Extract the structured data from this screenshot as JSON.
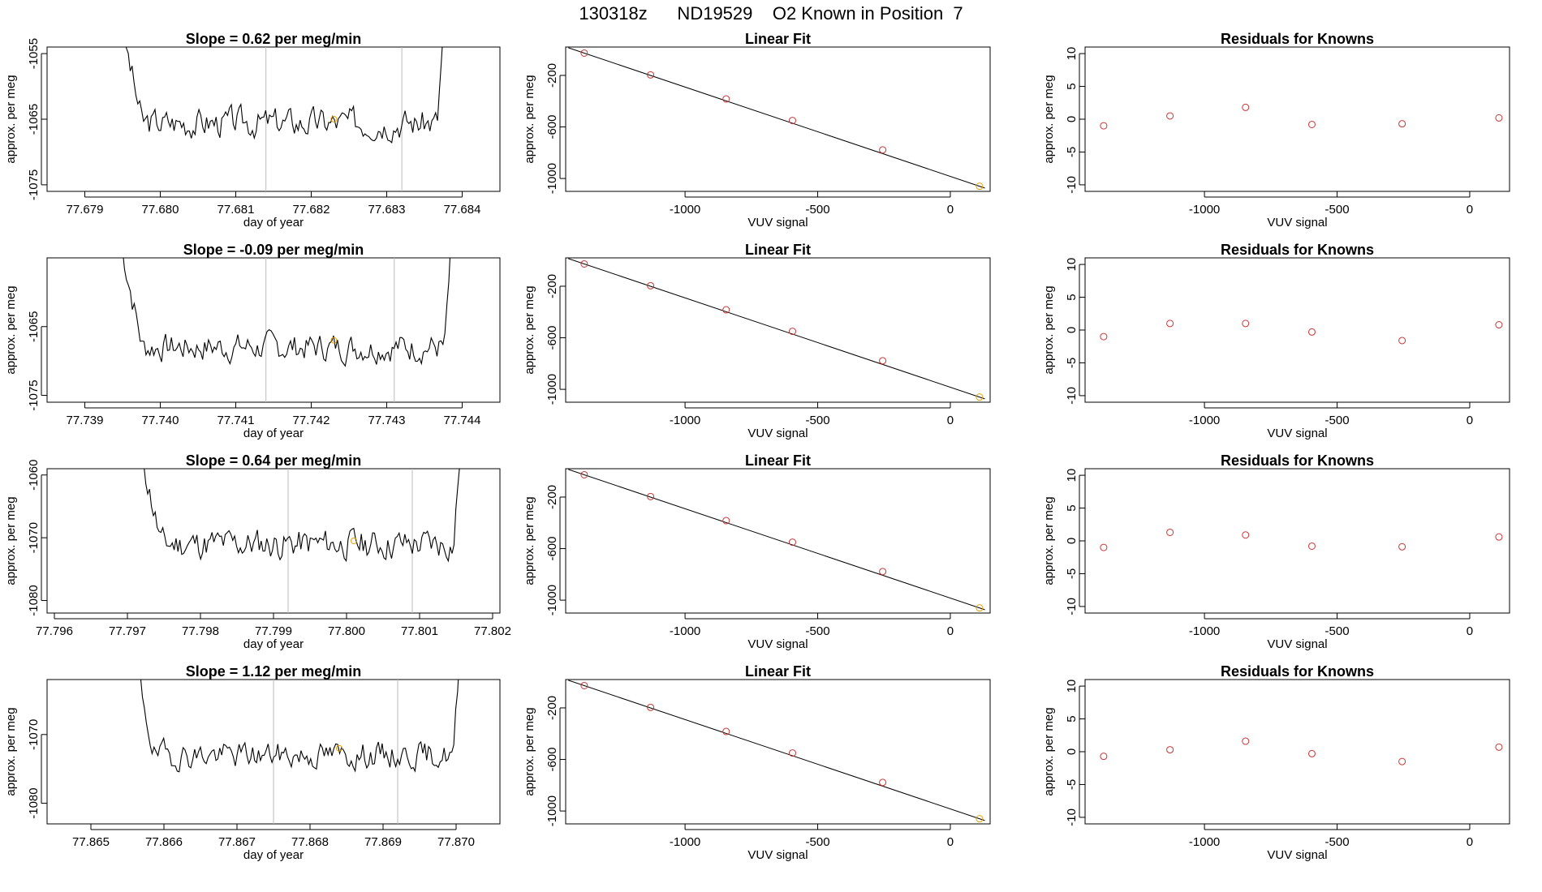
{
  "page_title": "130318z      ND19529    O2 Known in Position  7",
  "colors": {
    "trace": "#000000",
    "point": "#cc3333",
    "highlight": "#e69f00",
    "marker_line": "#bbbbbb",
    "frame": "#000000"
  },
  "chart_data": [
    {
      "type": "line",
      "title": "Slope =  0.62  per meg/min",
      "xlabel": "day of year",
      "ylabel": "approx. per meg",
      "xlim": [
        77.6785,
        77.6845
      ],
      "ylim": [
        -1076,
        -1054
      ],
      "xticks": [
        77.679,
        77.68,
        77.681,
        77.682,
        77.683,
        77.684
      ],
      "xtick_labels": [
        "77.679",
        "77.680",
        "77.681",
        "77.682",
        "77.683",
        "77.684"
      ],
      "yticks": [
        -1055,
        -1065,
        -1075
      ],
      "ytick_labels": [
        "-1055",
        "-1065",
        "-1075"
      ],
      "x_start": 77.6795,
      "x_end": 77.6838,
      "baseline": -1065.5,
      "amplitude": 3.5,
      "seed": 3,
      "vlines": [
        77.6814,
        77.6832
      ],
      "highlight_point": {
        "x": 77.6823,
        "y": -1065
      }
    },
    {
      "type": "scatter",
      "title": "Linear Fit",
      "xlabel": "VUV signal",
      "ylabel": "approx. per meg",
      "xlim": [
        -1450,
        150
      ],
      "ylim": [
        -1100,
        20
      ],
      "xticks": [
        -1000,
        -500,
        0
      ],
      "xtick_labels": [
        "-1000",
        "-500",
        "0"
      ],
      "yticks": [
        -200,
        -600,
        -1000
      ],
      "ytick_labels": [
        "-200",
        "-600",
        "-1000"
      ],
      "points": [
        {
          "x": -1380,
          "y": -27
        },
        {
          "x": -1130,
          "y": -196
        },
        {
          "x": -845,
          "y": -383
        },
        {
          "x": -595,
          "y": -550
        },
        {
          "x": -255,
          "y": -778
        },
        {
          "x": 110,
          "y": -1060
        }
      ],
      "fit_line": [
        {
          "x": -1380,
          "y": -27
        },
        {
          "x": 110,
          "y": -1060
        }
      ],
      "highlight_index": 5
    },
    {
      "type": "scatter",
      "title": "Residuals for Knowns",
      "xlabel": "VUV signal",
      "ylabel": "approx. per meg",
      "xlim": [
        -1450,
        150
      ],
      "ylim": [
        -11,
        11
      ],
      "xticks": [
        -1000,
        -500,
        0
      ],
      "xtick_labels": [
        "-1000",
        "-500",
        "0"
      ],
      "yticks": [
        10,
        5,
        0,
        -5,
        -10
      ],
      "ytick_labels": [
        "10",
        "5",
        "0",
        "-5",
        "-10"
      ],
      "points": [
        {
          "x": -1380,
          "y": -1.0
        },
        {
          "x": -1130,
          "y": 0.5
        },
        {
          "x": -845,
          "y": 1.8
        },
        {
          "x": -595,
          "y": -0.8
        },
        {
          "x": -255,
          "y": -0.7
        },
        {
          "x": 110,
          "y": 0.2
        }
      ]
    },
    {
      "type": "line",
      "title": "Slope =  -0.09  per meg/min",
      "xlabel": "day of year",
      "ylabel": "approx. per meg",
      "xlim": [
        77.7385,
        77.7445
      ],
      "ylim": [
        -1076,
        -1055
      ],
      "xticks": [
        77.739,
        77.74,
        77.741,
        77.742,
        77.743,
        77.744
      ],
      "xtick_labels": [
        "77.739",
        "77.740",
        "77.741",
        "77.742",
        "77.743",
        "77.744"
      ],
      "yticks": [
        -1065,
        -1075
      ],
      "ytick_labels": [
        "-1065",
        "-1075"
      ],
      "x_start": 77.7395,
      "x_end": 77.7439,
      "baseline": -1068,
      "amplitude": 3.2,
      "seed": 7,
      "vlines": [
        77.7414,
        77.7431
      ],
      "highlight_point": {
        "x": 77.7423,
        "y": -1067
      }
    },
    {
      "type": "scatter",
      "title": "Linear Fit",
      "xlabel": "VUV signal",
      "ylabel": "approx. per meg",
      "xlim": [
        -1450,
        150
      ],
      "ylim": [
        -1100,
        20
      ],
      "xticks": [
        -1000,
        -500,
        0
      ],
      "xtick_labels": [
        "-1000",
        "-500",
        "0"
      ],
      "yticks": [
        -200,
        -600,
        -1000
      ],
      "ytick_labels": [
        "-200",
        "-600",
        "-1000"
      ],
      "points": [
        {
          "x": -1380,
          "y": -27
        },
        {
          "x": -1130,
          "y": -196
        },
        {
          "x": -845,
          "y": -383
        },
        {
          "x": -595,
          "y": -550
        },
        {
          "x": -255,
          "y": -778
        },
        {
          "x": 110,
          "y": -1060
        }
      ],
      "fit_line": [
        {
          "x": -1380,
          "y": -27
        },
        {
          "x": 110,
          "y": -1060
        }
      ],
      "highlight_index": 5
    },
    {
      "type": "scatter",
      "title": "Residuals for Knowns",
      "xlabel": "VUV signal",
      "ylabel": "approx. per meg",
      "xlim": [
        -1450,
        150
      ],
      "ylim": [
        -11,
        11
      ],
      "xticks": [
        -1000,
        -500,
        0
      ],
      "xtick_labels": [
        "-1000",
        "-500",
        "0"
      ],
      "yticks": [
        10,
        5,
        0,
        -5,
        -10
      ],
      "ytick_labels": [
        "10",
        "5",
        "0",
        "-5",
        "-10"
      ],
      "points": [
        {
          "x": -1380,
          "y": -1.0
        },
        {
          "x": -1130,
          "y": 1.0
        },
        {
          "x": -845,
          "y": 1.0
        },
        {
          "x": -595,
          "y": -0.3
        },
        {
          "x": -255,
          "y": -1.6
        },
        {
          "x": 110,
          "y": 0.8
        }
      ]
    },
    {
      "type": "line",
      "title": "Slope =  0.64  per meg/min",
      "xlabel": "day of year",
      "ylabel": "approx. per meg",
      "xlim": [
        77.7959,
        77.8021
      ],
      "ylim": [
        -1082,
        -1059
      ],
      "xticks": [
        77.796,
        77.797,
        77.798,
        77.799,
        77.8,
        77.801,
        77.802
      ],
      "xtick_labels": [
        "77.796",
        "77.797",
        "77.798",
        "77.799",
        "77.800",
        "77.801",
        "77.802"
      ],
      "yticks": [
        -1060,
        -1070,
        -1080
      ],
      "ytick_labels": [
        "-1060",
        "-1070",
        "-1080"
      ],
      "x_start": 77.7972,
      "x_end": 77.8016,
      "baseline": -1071,
      "amplitude": 3.8,
      "seed": 11,
      "vlines": [
        77.7992,
        77.8009
      ],
      "highlight_point": {
        "x": 77.8001,
        "y": -1070.5
      }
    },
    {
      "type": "scatter",
      "title": "Linear Fit",
      "xlabel": "VUV signal",
      "ylabel": "approx. per meg",
      "xlim": [
        -1450,
        150
      ],
      "ylim": [
        -1100,
        20
      ],
      "xticks": [
        -1000,
        -500,
        0
      ],
      "xtick_labels": [
        "-1000",
        "-500",
        "0"
      ],
      "yticks": [
        -200,
        -600,
        -1000
      ],
      "ytick_labels": [
        "-200",
        "-600",
        "-1000"
      ],
      "points": [
        {
          "x": -1380,
          "y": -27
        },
        {
          "x": -1130,
          "y": -196
        },
        {
          "x": -845,
          "y": -383
        },
        {
          "x": -595,
          "y": -550
        },
        {
          "x": -255,
          "y": -778
        },
        {
          "x": 110,
          "y": -1060
        }
      ],
      "fit_line": [
        {
          "x": -1380,
          "y": -27
        },
        {
          "x": 110,
          "y": -1060
        }
      ],
      "highlight_index": 5
    },
    {
      "type": "scatter",
      "title": "Residuals for Knowns",
      "xlabel": "VUV signal",
      "ylabel": "approx. per meg",
      "xlim": [
        -1450,
        150
      ],
      "ylim": [
        -11,
        11
      ],
      "xticks": [
        -1000,
        -500,
        0
      ],
      "xtick_labels": [
        "-1000",
        "-500",
        "0"
      ],
      "yticks": [
        10,
        5,
        0,
        -5,
        -10
      ],
      "ytick_labels": [
        "10",
        "5",
        "0",
        "-5",
        "-10"
      ],
      "points": [
        {
          "x": -1380,
          "y": -1.0
        },
        {
          "x": -1130,
          "y": 1.3
        },
        {
          "x": -845,
          "y": 0.9
        },
        {
          "x": -595,
          "y": -0.8
        },
        {
          "x": -255,
          "y": -0.9
        },
        {
          "x": 110,
          "y": 0.6
        }
      ]
    },
    {
      "type": "line",
      "title": "Slope =  1.12  per meg/min",
      "xlabel": "day of year",
      "ylabel": "approx. per meg",
      "xlim": [
        77.8644,
        77.8706
      ],
      "ylim": [
        -1083,
        -1062
      ],
      "xticks": [
        77.865,
        77.866,
        77.867,
        77.868,
        77.869,
        77.87
      ],
      "xtick_labels": [
        "77.865",
        "77.866",
        "77.867",
        "77.868",
        "77.869",
        "77.870"
      ],
      "yticks": [
        -1070,
        -1080
      ],
      "ytick_labels": [
        "-1070",
        "-1080"
      ],
      "x_start": 77.8656,
      "x_end": 77.8701,
      "baseline": -1073,
      "amplitude": 3.0,
      "seed": 19,
      "vlines": [
        77.8675,
        77.8692
      ],
      "highlight_point": {
        "x": 77.8684,
        "y": -1072
      }
    },
    {
      "type": "scatter",
      "title": "Linear Fit",
      "xlabel": "VUV signal",
      "ylabel": "approx. per meg",
      "xlim": [
        -1450,
        150
      ],
      "ylim": [
        -1100,
        20
      ],
      "xticks": [
        -1000,
        -500,
        0
      ],
      "xtick_labels": [
        "-1000",
        "-500",
        "0"
      ],
      "yticks": [
        -200,
        -600,
        -1000
      ],
      "ytick_labels": [
        "-200",
        "-600",
        "-1000"
      ],
      "points": [
        {
          "x": -1380,
          "y": -27
        },
        {
          "x": -1130,
          "y": -196
        },
        {
          "x": -845,
          "y": -383
        },
        {
          "x": -595,
          "y": -550
        },
        {
          "x": -255,
          "y": -778
        },
        {
          "x": 110,
          "y": -1060
        }
      ],
      "fit_line": [
        {
          "x": -1380,
          "y": -27
        },
        {
          "x": 110,
          "y": -1060
        }
      ],
      "highlight_index": 5
    },
    {
      "type": "scatter",
      "title": "Residuals for Knowns",
      "xlabel": "VUV signal",
      "ylabel": "approx. per meg",
      "xlim": [
        -1450,
        150
      ],
      "ylim": [
        -11,
        11
      ],
      "xticks": [
        -1000,
        -500,
        0
      ],
      "xtick_labels": [
        "-1000",
        "-500",
        "0"
      ],
      "yticks": [
        10,
        5,
        0,
        -5,
        -10
      ],
      "ytick_labels": [
        "10",
        "5",
        "0",
        "-5",
        "-10"
      ],
      "points": [
        {
          "x": -1380,
          "y": -0.7
        },
        {
          "x": -1130,
          "y": 0.3
        },
        {
          "x": -845,
          "y": 1.6
        },
        {
          "x": -595,
          "y": -0.3
        },
        {
          "x": -255,
          "y": -1.5
        },
        {
          "x": 110,
          "y": 0.7
        }
      ]
    }
  ]
}
